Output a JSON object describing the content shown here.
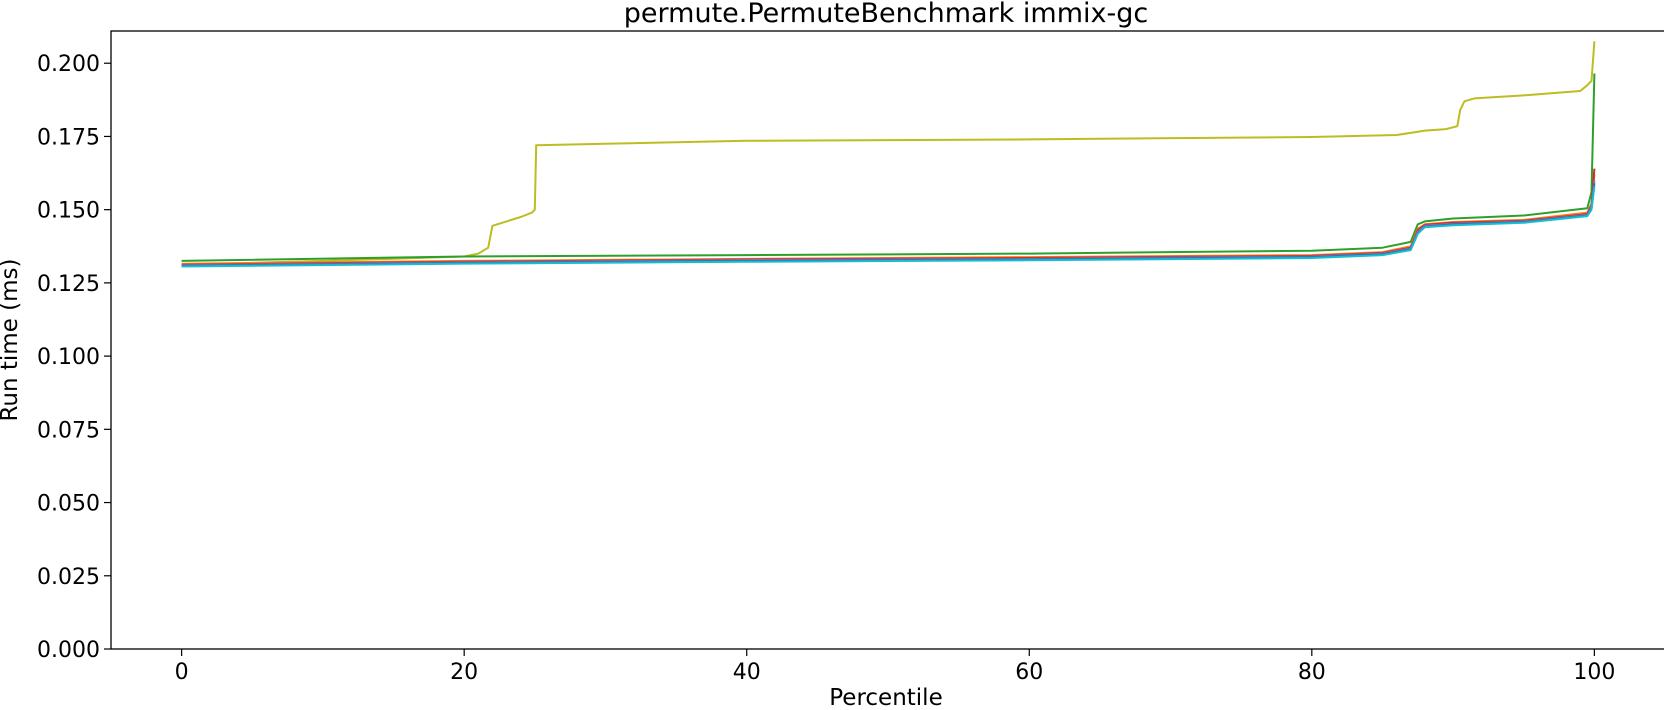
{
  "chart_data": {
    "type": "line",
    "title": "permute.PermuteBenchmark immix-gc",
    "xlabel": "Percentile",
    "ylabel": "Run time (ms)",
    "xlim": [
      -5,
      105
    ],
    "ylim": [
      0.0,
      0.211
    ],
    "xticks": [
      0,
      20,
      40,
      60,
      80,
      100
    ],
    "xtick_labels": [
      "0",
      "20",
      "40",
      "60",
      "80",
      "100"
    ],
    "yticks": [
      0.0,
      0.025,
      0.05,
      0.075,
      0.1,
      0.125,
      0.15,
      0.175,
      0.2
    ],
    "ytick_labels": [
      "0.000",
      "0.025",
      "0.050",
      "0.075",
      "0.100",
      "0.125",
      "0.150",
      "0.175",
      "0.200"
    ],
    "grid": false,
    "legend": "none",
    "series": [
      {
        "color": "#bcbd22",
        "x": [
          0,
          10,
          20,
          21,
          21.7,
          22,
          23,
          24,
          24.8,
          25,
          25.1,
          30,
          40,
          60,
          80,
          86,
          87,
          88,
          89.5,
          90.3,
          90.5,
          90.8,
          91.5,
          95,
          99,
          99.5,
          99.8,
          100
        ],
        "y": [
          0.1312,
          0.1325,
          0.134,
          0.135,
          0.137,
          0.1445,
          0.146,
          0.1475,
          0.149,
          0.15,
          0.172,
          0.1725,
          0.1735,
          0.174,
          0.1748,
          0.1755,
          0.1762,
          0.177,
          0.1775,
          0.1785,
          0.184,
          0.187,
          0.188,
          0.189,
          0.1905,
          0.1925,
          0.194,
          0.2075
        ]
      },
      {
        "color": "#2ca02c",
        "x": [
          0,
          20,
          40,
          60,
          80,
          85,
          87,
          87.5,
          88,
          90,
          95,
          99.5,
          99.8,
          100
        ],
        "y": [
          0.1325,
          0.134,
          0.1345,
          0.135,
          0.136,
          0.137,
          0.139,
          0.145,
          0.146,
          0.147,
          0.148,
          0.1505,
          0.156,
          0.1965
        ]
      },
      {
        "color": "#ff7f0e",
        "x": [
          0,
          20,
          40,
          60,
          80,
          85,
          87,
          87.5,
          88,
          90,
          95,
          99.5,
          99.8,
          100
        ],
        "y": [
          0.1315,
          0.1325,
          0.1332,
          0.1338,
          0.1345,
          0.1355,
          0.1375,
          0.1435,
          0.145,
          0.1458,
          0.1465,
          0.149,
          0.152,
          0.162
        ]
      },
      {
        "color": "#d62728",
        "x": [
          0,
          20,
          40,
          60,
          80,
          85,
          87,
          87.5,
          88,
          90,
          95,
          99.5,
          99.8,
          100
        ],
        "y": [
          0.1312,
          0.1322,
          0.133,
          0.1335,
          0.1342,
          0.1352,
          0.137,
          0.143,
          0.1448,
          0.1455,
          0.1462,
          0.1485,
          0.1515,
          0.164
        ]
      },
      {
        "color": "#9467bd",
        "x": [
          0,
          20,
          40,
          60,
          80,
          85,
          87,
          87.5,
          88,
          90,
          95,
          99.5,
          99.8,
          100
        ],
        "y": [
          0.131,
          0.132,
          0.1328,
          0.1332,
          0.134,
          0.135,
          0.1368,
          0.1425,
          0.1445,
          0.1452,
          0.146,
          0.1482,
          0.151,
          0.16
        ]
      },
      {
        "color": "#1f77b4",
        "x": [
          0,
          20,
          40,
          60,
          80,
          85,
          87,
          87.5,
          88,
          90,
          95,
          99.5,
          99.8,
          100
        ],
        "y": [
          0.1308,
          0.1318,
          0.1325,
          0.133,
          0.1338,
          0.1348,
          0.1365,
          0.142,
          0.1442,
          0.145,
          0.1458,
          0.148,
          0.1505,
          0.159
        ]
      },
      {
        "color": "#17becf",
        "x": [
          0,
          20,
          40,
          60,
          80,
          85,
          87,
          87.5,
          88,
          90,
          95,
          99.5,
          99.8,
          100
        ],
        "y": [
          0.1306,
          0.1316,
          0.1322,
          0.1327,
          0.1335,
          0.1345,
          0.1362,
          0.1418,
          0.144,
          0.1447,
          0.1455,
          0.1478,
          0.15,
          0.158
        ]
      }
    ]
  }
}
